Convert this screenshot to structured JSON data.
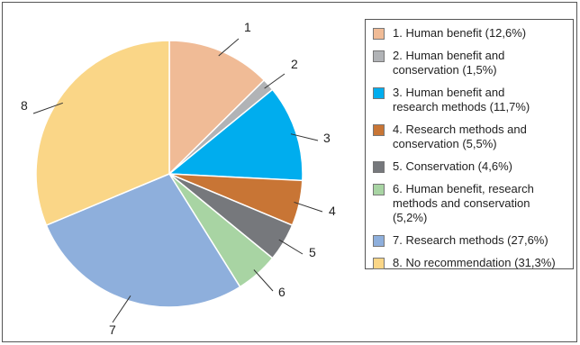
{
  "chart_data": {
    "type": "pie",
    "title": "",
    "slices": [
      {
        "label": "1",
        "name": "1. Human benefit (12,6%)",
        "value": 12.6,
        "color": "#f0bb96"
      },
      {
        "label": "2",
        "name": "2. Human benefit and conservation (1,5%)",
        "value": 1.5,
        "color": "#b1b3b6"
      },
      {
        "label": "3",
        "name": "3. Human benefit and research methods (11,7%)",
        "value": 11.7,
        "color": "#00adee"
      },
      {
        "label": "4",
        "name": "4. Research methods and conservation (5,5%)",
        "value": 5.5,
        "color": "#c87535"
      },
      {
        "label": "5",
        "name": "5. Conservation (4,6%)",
        "value": 4.6,
        "color": "#76787c"
      },
      {
        "label": "6",
        "name": "6. Human benefit, research methods and conservation (5,2%)",
        "value": 5.2,
        "color": "#a8d4a3"
      },
      {
        "label": "7",
        "name": "7. Research methods (27,6%)",
        "value": 27.6,
        "color": "#8eafdc"
      },
      {
        "label": "8",
        "name": "8. No recommendation (31,3%)",
        "value": 31.3,
        "color": "#fad687"
      }
    ],
    "legend_placement": "right"
  },
  "legend": {
    "items": [
      {
        "lines": [
          "1. Human benefit (12,6%)"
        ]
      },
      {
        "lines": [
          "2. Human benefit and",
          "conservation (1,5%)"
        ]
      },
      {
        "lines": [
          "3. Human benefit and",
          "research methods (11,7%)"
        ]
      },
      {
        "lines": [
          "4. Research methods and",
          "conservation (5,5%)"
        ]
      },
      {
        "lines": [
          "5. Conservation (4,6%)"
        ]
      },
      {
        "lines": [
          "6. Human benefit, research",
          "methods and conservation",
          "(5,2%)"
        ]
      },
      {
        "lines": [
          "7. Research methods (27,6%)"
        ]
      },
      {
        "lines": [
          "8. No recommendation (31,3%)"
        ]
      }
    ]
  }
}
